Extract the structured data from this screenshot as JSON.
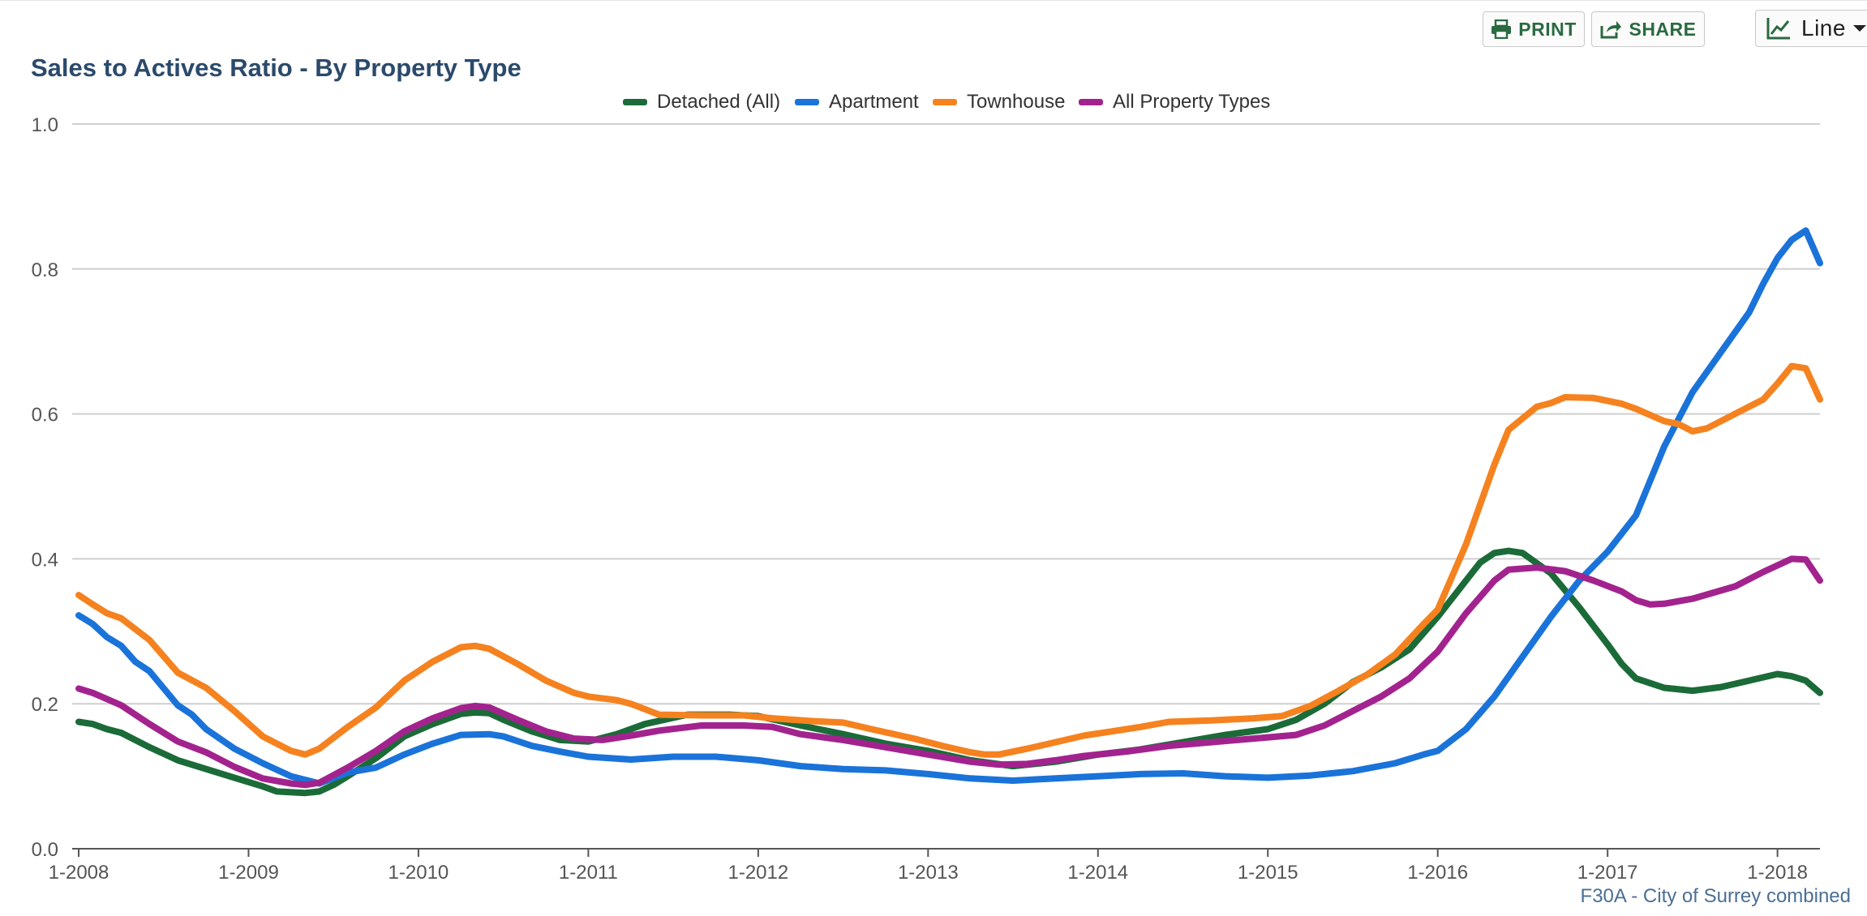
{
  "toolbar": {
    "print_label": "PRINT",
    "share_label": "SHARE",
    "chart_type_label": "Line"
  },
  "footer_note": "F30A - City of Surrey combined",
  "colors": {
    "detached": "#1b6b38",
    "apartment": "#1a73d9",
    "townhouse": "#f5821f",
    "all": "#a3238e",
    "toolbar_icon": "#2a6a40",
    "title": "#2b4a6b"
  },
  "chart_data": {
    "type": "line",
    "title": "Sales to Actives Ratio - By Property Type",
    "xlabel": "",
    "ylabel": "",
    "ylim": [
      0,
      1.0
    ],
    "yticks": [
      "0.0",
      "0.2",
      "0.4",
      "0.6",
      "0.8",
      "1.0"
    ],
    "xticks": [
      "1-2008",
      "1-2009",
      "1-2010",
      "1-2011",
      "1-2012",
      "1-2013",
      "1-2014",
      "1-2015",
      "1-2016",
      "1-2017",
      "1-2018"
    ],
    "x_start": "1-2008",
    "x_end": "4-2018",
    "grid": true,
    "legend_position": "top-center",
    "series": [
      {
        "name": "Detached (All)",
        "color_key": "detached",
        "points": [
          [
            "1-2008",
            0.175
          ],
          [
            "2-2008",
            0.172
          ],
          [
            "3-2008",
            0.165
          ],
          [
            "4-2008",
            0.16
          ],
          [
            "6-2008",
            0.14
          ],
          [
            "8-2008",
            0.122
          ],
          [
            "10-2008",
            0.11
          ],
          [
            "12-2008",
            0.098
          ],
          [
            "2-2009",
            0.086
          ],
          [
            "3-2009",
            0.079
          ],
          [
            "5-2009",
            0.077
          ],
          [
            "6-2009",
            0.079
          ],
          [
            "7-2009",
            0.088
          ],
          [
            "8-2009",
            0.1
          ],
          [
            "10-2009",
            0.125
          ],
          [
            "12-2009",
            0.155
          ],
          [
            "2-2010",
            0.172
          ],
          [
            "4-2010",
            0.186
          ],
          [
            "5-2010",
            0.188
          ],
          [
            "6-2010",
            0.187
          ],
          [
            "7-2010",
            0.178
          ],
          [
            "9-2010",
            0.162
          ],
          [
            "11-2010",
            0.15
          ],
          [
            "1-2011",
            0.148
          ],
          [
            "3-2011",
            0.158
          ],
          [
            "5-2011",
            0.172
          ],
          [
            "8-2011",
            0.185
          ],
          [
            "11-2011",
            0.185
          ],
          [
            "1-2012",
            0.183
          ],
          [
            "4-2012",
            0.17
          ],
          [
            "7-2012",
            0.158
          ],
          [
            "10-2012",
            0.145
          ],
          [
            "1-2013",
            0.135
          ],
          [
            "4-2013",
            0.122
          ],
          [
            "7-2013",
            0.114
          ],
          [
            "10-2013",
            0.12
          ],
          [
            "1-2014",
            0.13
          ],
          [
            "4-2014",
            0.137
          ],
          [
            "7-2014",
            0.147
          ],
          [
            "10-2014",
            0.157
          ],
          [
            "1-2015",
            0.165
          ],
          [
            "3-2015",
            0.178
          ],
          [
            "5-2015",
            0.2
          ],
          [
            "7-2015",
            0.23
          ],
          [
            "9-2015",
            0.25
          ],
          [
            "11-2015",
            0.275
          ],
          [
            "1-2016",
            0.32
          ],
          [
            "3-2016",
            0.37
          ],
          [
            "4-2016",
            0.395
          ],
          [
            "5-2016",
            0.408
          ],
          [
            "6-2016",
            0.411
          ],
          [
            "7-2016",
            0.408
          ],
          [
            "9-2016",
            0.38
          ],
          [
            "11-2016",
            0.333
          ],
          [
            "1-2017",
            0.282
          ],
          [
            "2-2017",
            0.255
          ],
          [
            "3-2017",
            0.235
          ],
          [
            "5-2017",
            0.222
          ],
          [
            "7-2017",
            0.218
          ],
          [
            "9-2017",
            0.223
          ],
          [
            "11-2017",
            0.232
          ],
          [
            "1-2018",
            0.241
          ],
          [
            "2-2018",
            0.238
          ],
          [
            "3-2018",
            0.232
          ],
          [
            "4-2018",
            0.215
          ]
        ]
      },
      {
        "name": "Apartment",
        "color_key": "apartment",
        "points": [
          [
            "1-2008",
            0.322
          ],
          [
            "2-2008",
            0.31
          ],
          [
            "3-2008",
            0.292
          ],
          [
            "4-2008",
            0.28
          ],
          [
            "5-2008",
            0.258
          ],
          [
            "6-2008",
            0.245
          ],
          [
            "8-2008",
            0.198
          ],
          [
            "9-2008",
            0.185
          ],
          [
            "10-2008",
            0.165
          ],
          [
            "12-2008",
            0.138
          ],
          [
            "2-2009",
            0.118
          ],
          [
            "4-2009",
            0.1
          ],
          [
            "6-2009",
            0.09
          ],
          [
            "8-2009",
            0.105
          ],
          [
            "10-2009",
            0.112
          ],
          [
            "12-2009",
            0.13
          ],
          [
            "2-2010",
            0.145
          ],
          [
            "4-2010",
            0.157
          ],
          [
            "6-2010",
            0.158
          ],
          [
            "7-2010",
            0.155
          ],
          [
            "9-2010",
            0.142
          ],
          [
            "11-2010",
            0.134
          ],
          [
            "1-2011",
            0.127
          ],
          [
            "4-2011",
            0.123
          ],
          [
            "7-2011",
            0.127
          ],
          [
            "10-2011",
            0.127
          ],
          [
            "1-2012",
            0.122
          ],
          [
            "4-2012",
            0.114
          ],
          [
            "7-2012",
            0.11
          ],
          [
            "10-2012",
            0.108
          ],
          [
            "1-2013",
            0.103
          ],
          [
            "4-2013",
            0.097
          ],
          [
            "7-2013",
            0.094
          ],
          [
            "10-2013",
            0.097
          ],
          [
            "1-2014",
            0.1
          ],
          [
            "4-2014",
            0.103
          ],
          [
            "7-2014",
            0.104
          ],
          [
            "10-2014",
            0.1
          ],
          [
            "1-2015",
            0.098
          ],
          [
            "4-2015",
            0.101
          ],
          [
            "7-2015",
            0.107
          ],
          [
            "10-2015",
            0.118
          ],
          [
            "12-2015",
            0.13
          ],
          [
            "1-2016",
            0.135
          ],
          [
            "3-2016",
            0.165
          ],
          [
            "5-2016",
            0.21
          ],
          [
            "7-2016",
            0.265
          ],
          [
            "9-2016",
            0.32
          ],
          [
            "11-2016",
            0.37
          ],
          [
            "1-2017",
            0.41
          ],
          [
            "3-2017",
            0.46
          ],
          [
            "5-2017",
            0.555
          ],
          [
            "7-2017",
            0.63
          ],
          [
            "9-2017",
            0.685
          ],
          [
            "11-2017",
            0.74
          ],
          [
            "12-2017",
            0.78
          ],
          [
            "1-2018",
            0.815
          ],
          [
            "2-2018",
            0.84
          ],
          [
            "3-2018",
            0.853
          ],
          [
            "4-2018",
            0.808
          ]
        ]
      },
      {
        "name": "Townhouse",
        "color_key": "townhouse",
        "points": [
          [
            "1-2008",
            0.35
          ],
          [
            "2-2008",
            0.337
          ],
          [
            "3-2008",
            0.325
          ],
          [
            "4-2008",
            0.318
          ],
          [
            "6-2008",
            0.288
          ],
          [
            "8-2008",
            0.243
          ],
          [
            "10-2008",
            0.222
          ],
          [
            "12-2008",
            0.19
          ],
          [
            "2-2009",
            0.155
          ],
          [
            "4-2009",
            0.135
          ],
          [
            "5-2009",
            0.13
          ],
          [
            "6-2009",
            0.138
          ],
          [
            "8-2009",
            0.168
          ],
          [
            "10-2009",
            0.195
          ],
          [
            "12-2009",
            0.232
          ],
          [
            "2-2010",
            0.258
          ],
          [
            "4-2010",
            0.278
          ],
          [
            "5-2010",
            0.28
          ],
          [
            "6-2010",
            0.276
          ],
          [
            "8-2010",
            0.255
          ],
          [
            "10-2010",
            0.232
          ],
          [
            "12-2010",
            0.215
          ],
          [
            "1-2011",
            0.21
          ],
          [
            "3-2011",
            0.205
          ],
          [
            "4-2011",
            0.2
          ],
          [
            "6-2011",
            0.185
          ],
          [
            "9-2011",
            0.184
          ],
          [
            "12-2011",
            0.184
          ],
          [
            "2-2012",
            0.18
          ],
          [
            "5-2012",
            0.176
          ],
          [
            "7-2012",
            0.174
          ],
          [
            "9-2012",
            0.165
          ],
          [
            "12-2012",
            0.152
          ],
          [
            "2-2013",
            0.142
          ],
          [
            "4-2013",
            0.133
          ],
          [
            "5-2013",
            0.13
          ],
          [
            "6-2013",
            0.13
          ],
          [
            "8-2013",
            0.138
          ],
          [
            "10-2013",
            0.147
          ],
          [
            "12-2013",
            0.156
          ],
          [
            "2-2014",
            0.162
          ],
          [
            "4-2014",
            0.168
          ],
          [
            "6-2014",
            0.175
          ],
          [
            "9-2014",
            0.177
          ],
          [
            "12-2014",
            0.18
          ],
          [
            "2-2015",
            0.183
          ],
          [
            "4-2015",
            0.197
          ],
          [
            "6-2015",
            0.218
          ],
          [
            "8-2015",
            0.24
          ],
          [
            "10-2015",
            0.268
          ],
          [
            "12-2015",
            0.31
          ],
          [
            "1-2016",
            0.33
          ],
          [
            "3-2016",
            0.42
          ],
          [
            "5-2016",
            0.53
          ],
          [
            "6-2016",
            0.578
          ],
          [
            "8-2016",
            0.61
          ],
          [
            "9-2016",
            0.615
          ],
          [
            "10-2016",
            0.623
          ],
          [
            "12-2016",
            0.622
          ],
          [
            "2-2017",
            0.614
          ],
          [
            "3-2017",
            0.607
          ],
          [
            "5-2017",
            0.59
          ],
          [
            "6-2017",
            0.586
          ],
          [
            "7-2017",
            0.576
          ],
          [
            "8-2017",
            0.58
          ],
          [
            "10-2017",
            0.6
          ],
          [
            "12-2017",
            0.62
          ],
          [
            "1-2018",
            0.642
          ],
          [
            "2-2018",
            0.666
          ],
          [
            "3-2018",
            0.663
          ],
          [
            "4-2018",
            0.62
          ]
        ]
      },
      {
        "name": "All Property Types",
        "color_key": "all",
        "points": [
          [
            "1-2008",
            0.221
          ],
          [
            "2-2008",
            0.215
          ],
          [
            "4-2008",
            0.198
          ],
          [
            "6-2008",
            0.172
          ],
          [
            "8-2008",
            0.148
          ],
          [
            "10-2008",
            0.133
          ],
          [
            "12-2008",
            0.113
          ],
          [
            "2-2009",
            0.097
          ],
          [
            "4-2009",
            0.09
          ],
          [
            "5-2009",
            0.088
          ],
          [
            "6-2009",
            0.091
          ],
          [
            "8-2009",
            0.112
          ],
          [
            "10-2009",
            0.135
          ],
          [
            "12-2009",
            0.162
          ],
          [
            "2-2010",
            0.18
          ],
          [
            "4-2010",
            0.194
          ],
          [
            "5-2010",
            0.197
          ],
          [
            "6-2010",
            0.195
          ],
          [
            "8-2010",
            0.178
          ],
          [
            "10-2010",
            0.162
          ],
          [
            "12-2010",
            0.152
          ],
          [
            "2-2011",
            0.15
          ],
          [
            "4-2011",
            0.156
          ],
          [
            "6-2011",
            0.163
          ],
          [
            "9-2011",
            0.17
          ],
          [
            "12-2011",
            0.17
          ],
          [
            "2-2012",
            0.168
          ],
          [
            "4-2012",
            0.158
          ],
          [
            "7-2012",
            0.15
          ],
          [
            "10-2012",
            0.14
          ],
          [
            "1-2013",
            0.13
          ],
          [
            "4-2013",
            0.12
          ],
          [
            "6-2013",
            0.116
          ],
          [
            "8-2013",
            0.117
          ],
          [
            "10-2013",
            0.122
          ],
          [
            "12-2013",
            0.128
          ],
          [
            "3-2014",
            0.134
          ],
          [
            "6-2014",
            0.142
          ],
          [
            "9-2014",
            0.147
          ],
          [
            "12-2014",
            0.152
          ],
          [
            "3-2015",
            0.157
          ],
          [
            "5-2015",
            0.17
          ],
          [
            "7-2015",
            0.19
          ],
          [
            "9-2015",
            0.21
          ],
          [
            "11-2015",
            0.235
          ],
          [
            "1-2016",
            0.272
          ],
          [
            "3-2016",
            0.325
          ],
          [
            "5-2016",
            0.37
          ],
          [
            "6-2016",
            0.385
          ],
          [
            "8-2016",
            0.388
          ],
          [
            "10-2016",
            0.383
          ],
          [
            "12-2016",
            0.37
          ],
          [
            "2-2017",
            0.355
          ],
          [
            "3-2017",
            0.343
          ],
          [
            "4-2017",
            0.337
          ],
          [
            "5-2017",
            0.338
          ],
          [
            "7-2017",
            0.345
          ],
          [
            "10-2017",
            0.362
          ],
          [
            "12-2017",
            0.382
          ],
          [
            "2-2018",
            0.4
          ],
          [
            "3-2018",
            0.399
          ],
          [
            "4-2018",
            0.37
          ]
        ]
      }
    ]
  }
}
